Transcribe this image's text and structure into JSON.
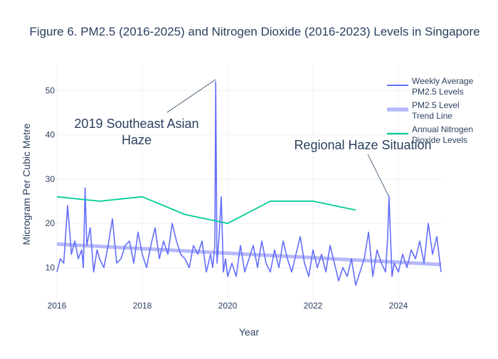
{
  "chart_data": {
    "type": "line",
    "title": "Figure 6. PM2.5 (2016-2025) and Nitrogen Dioxide (2016-2023) Levels in Singapore",
    "xlabel": "Year",
    "ylabel": "Microgram Per Cubic Metre",
    "xlim": [
      2016,
      2025
    ],
    "ylim": [
      3,
      56
    ],
    "x_ticks": [
      2016,
      2018,
      2020,
      2022,
      2024
    ],
    "y_ticks": [
      10,
      20,
      30,
      40,
      50
    ],
    "grid": true,
    "legend_position": "top-right",
    "series": [
      {
        "name": "Weekly Average PM2.5 Levels",
        "legend_lines": [
          "Weekly Average",
          "PM2.5 Levels"
        ],
        "color": "#636efa",
        "x": [
          2016.0,
          2016.08,
          2016.16,
          2016.25,
          2016.3,
          2016.34,
          2016.42,
          2016.5,
          2016.58,
          2016.62,
          2016.66,
          2016.7,
          2016.78,
          2016.86,
          2016.94,
          2017.0,
          2017.1,
          2017.2,
          2017.3,
          2017.4,
          2017.5,
          2017.6,
          2017.7,
          2017.8,
          2017.9,
          2018.0,
          2018.1,
          2018.2,
          2018.3,
          2018.4,
          2018.5,
          2018.6,
          2018.7,
          2018.8,
          2018.9,
          2019.0,
          2019.1,
          2019.2,
          2019.3,
          2019.4,
          2019.5,
          2019.6,
          2019.65,
          2019.7,
          2019.72,
          2019.75,
          2019.8,
          2019.85,
          2019.9,
          2019.95,
          2020.0,
          2020.1,
          2020.2,
          2020.3,
          2020.4,
          2020.5,
          2020.6,
          2020.7,
          2020.8,
          2020.9,
          2021.0,
          2021.1,
          2021.2,
          2021.3,
          2021.4,
          2021.5,
          2021.6,
          2021.7,
          2021.8,
          2021.9,
          2022.0,
          2022.1,
          2022.2,
          2022.3,
          2022.4,
          2022.5,
          2022.6,
          2022.7,
          2022.8,
          2022.9,
          2023.0,
          2023.1,
          2023.2,
          2023.3,
          2023.4,
          2023.5,
          2023.6,
          2023.7,
          2023.75,
          2023.78,
          2023.85,
          2023.9,
          2024.0,
          2024.1,
          2024.2,
          2024.3,
          2024.4,
          2024.5,
          2024.6,
          2024.7,
          2024.8,
          2024.9,
          2025.0
        ],
        "y": [
          9,
          12,
          11,
          24,
          18,
          13,
          16,
          12,
          14,
          10,
          28,
          15,
          19,
          9,
          14,
          12,
          10,
          15,
          21,
          11,
          12,
          15,
          16,
          11,
          18,
          13,
          10,
          15,
          19,
          12,
          16,
          13,
          20,
          16,
          13,
          12,
          10,
          15,
          13,
          16,
          9,
          13,
          10,
          15,
          52,
          11,
          17,
          26,
          9,
          12,
          8,
          11,
          8,
          15,
          9,
          12,
          15,
          10,
          16,
          11,
          9,
          14,
          10,
          16,
          12,
          9,
          13,
          17,
          11,
          8,
          14,
          10,
          13,
          9,
          15,
          11,
          7,
          10,
          8,
          12,
          6,
          9,
          12,
          18,
          8,
          14,
          11,
          9,
          17,
          26,
          8,
          11,
          9,
          13,
          10,
          14,
          12,
          16,
          11,
          20,
          13,
          17,
          9
        ]
      },
      {
        "name": "PM2.5 Level Trend Line",
        "legend_lines": [
          "PM2.5 Level",
          "Trend Line"
        ],
        "color": "#b6b9f9",
        "x": [
          2016,
          2025
        ],
        "y": [
          15.3,
          10.7
        ]
      },
      {
        "name": "Annual Nitrogen Dioxide Levels",
        "legend_lines": [
          "Annual Nitrogen",
          "Dioxide Levels"
        ],
        "color": "#00cc96",
        "x": [
          2016,
          2017,
          2018,
          2019,
          2020,
          2021,
          2022,
          2023
        ],
        "y": [
          26,
          25,
          26,
          22,
          20,
          25,
          25,
          23
        ]
      }
    ],
    "annotations": [
      {
        "lines": [
          "2019 Southeast Asian",
          "Haze"
        ],
        "x": 2019.72,
        "y": 52.5
      },
      {
        "lines": [
          "Regional Haze Situation"
        ],
        "x": 2023.78,
        "y": 26
      }
    ]
  }
}
